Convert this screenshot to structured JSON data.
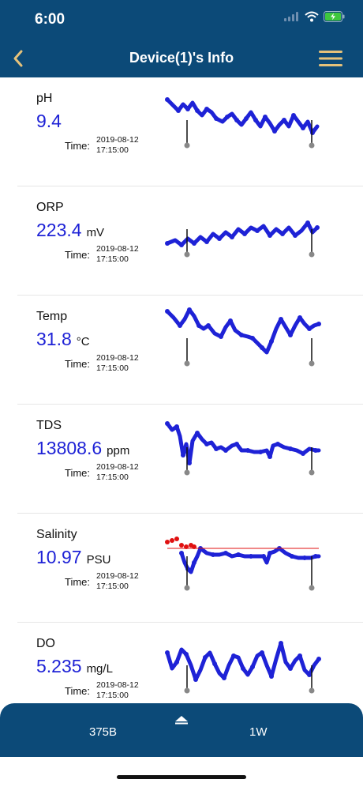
{
  "status_bar": {
    "time": "6:00"
  },
  "header": {
    "title": "Device(1)'s Info"
  },
  "colors": {
    "header_bg": "#0c4a78",
    "accent_gold": "#e6c27a",
    "value_blue": "#1e22d6",
    "alarm_red": "#e01010",
    "battery_green": "#3ec63e"
  },
  "icons": {
    "back": "chevron-left-icon",
    "menu": "hamburger-menu-icon",
    "drawer": "triangle-up-icon"
  },
  "sensors": [
    {
      "name": "pH",
      "value": "9.4",
      "unit": "",
      "time_label": "Time:",
      "date": "2019-08-12",
      "clock": "17:15:00"
    },
    {
      "name": "ORP",
      "value": "223.4",
      "unit": "mV",
      "time_label": "Time:",
      "date": "2019-08-12",
      "clock": "17:15:00"
    },
    {
      "name": "Temp",
      "value": "31.8",
      "unit": "°C",
      "time_label": "Time:",
      "date": "2019-08-12",
      "clock": "17:15:00"
    },
    {
      "name": "TDS",
      "value": "13808.6",
      "unit": "ppm",
      "time_label": "Time:",
      "date": "2019-08-12",
      "clock": "17:15:00"
    },
    {
      "name": "Salinity",
      "value": "10.97",
      "unit": "PSU",
      "time_label": "Time:",
      "date": "2019-08-12",
      "clock": "17:15:00"
    },
    {
      "name": "DO",
      "value": "5.235",
      "unit": "mg/L",
      "time_label": "Time:",
      "date": "2019-08-12",
      "clock": "17:15:00"
    }
  ],
  "bottom_bar": {
    "device_label": "375B",
    "range_label": "1W"
  }
}
